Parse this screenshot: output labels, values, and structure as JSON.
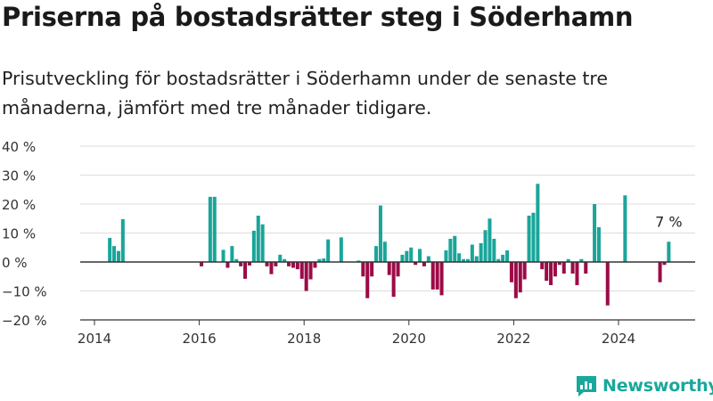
{
  "title": "Priserna på bostadsrätter steg i Söderhamn",
  "subtitle": "Prisutveckling för bostadsrätter i Söderhamn under de senaste tre månaderna, jämfört med tre månader tidigare.",
  "brand": {
    "name": "Newsworthy",
    "color": "#19a89c"
  },
  "colors": {
    "positive": "#1aa59a",
    "negative": "#9c0b47",
    "grid": "#dddddd",
    "axis": "#333333",
    "text": "#333333"
  },
  "chart_data": {
    "type": "bar",
    "x_unit": "month",
    "ylim": [
      -20,
      40
    ],
    "yticks": [
      -20,
      -10,
      0,
      10,
      20,
      30,
      40
    ],
    "ytick_labels": [
      "−20 %",
      "−10 %",
      "0 %",
      "10 %",
      "20 %",
      "30 %",
      "40 %"
    ],
    "xticks": [
      2014,
      2016,
      2018,
      2020,
      2022,
      2024
    ],
    "xtick_labels": [
      "2014",
      "2016",
      "2018",
      "2020",
      "2022",
      "2024"
    ],
    "grid": true,
    "annotation": {
      "text": "7 %",
      "x": "2024-12",
      "y": 7
    },
    "series": [
      {
        "points": [
          [
            "2014-04",
            8.3
          ],
          [
            "2014-05",
            5.5
          ],
          [
            "2014-06",
            3.8
          ],
          [
            "2014-07",
            14.8
          ],
          [
            "2016-01",
            -1.5
          ],
          [
            "2016-03",
            22.5
          ],
          [
            "2016-04",
            22.5
          ],
          [
            "2016-06",
            4.2
          ],
          [
            "2016-07",
            -2.0
          ],
          [
            "2016-08",
            5.5
          ],
          [
            "2016-09",
            1.0
          ],
          [
            "2016-10",
            -1.5
          ],
          [
            "2016-11",
            -5.8
          ],
          [
            "2016-12",
            -1.2
          ],
          [
            "2017-01",
            10.8
          ],
          [
            "2017-02",
            16.0
          ],
          [
            "2017-03",
            13.0
          ],
          [
            "2017-04",
            -1.5
          ],
          [
            "2017-05",
            -4.2
          ],
          [
            "2017-06",
            -1.5
          ],
          [
            "2017-07",
            2.5
          ],
          [
            "2017-08",
            1.0
          ],
          [
            "2017-09",
            -1.5
          ],
          [
            "2017-10",
            -2.0
          ],
          [
            "2017-11",
            -2.5
          ],
          [
            "2017-12",
            -5.8
          ],
          [
            "2018-01",
            -10.0
          ],
          [
            "2018-02",
            -6.0
          ],
          [
            "2018-03",
            -2.0
          ],
          [
            "2018-04",
            1.0
          ],
          [
            "2018-05",
            1.2
          ],
          [
            "2018-06",
            7.8
          ],
          [
            "2018-09",
            8.5
          ],
          [
            "2019-01",
            0.5
          ],
          [
            "2019-02",
            -5.0
          ],
          [
            "2019-03",
            -12.5
          ],
          [
            "2019-04",
            -5.0
          ],
          [
            "2019-05",
            5.5
          ],
          [
            "2019-06",
            19.5
          ],
          [
            "2019-07",
            7.0
          ],
          [
            "2019-08",
            -4.5
          ],
          [
            "2019-09",
            -12.0
          ],
          [
            "2019-10",
            -5.0
          ],
          [
            "2019-11",
            2.5
          ],
          [
            "2019-12",
            3.8
          ],
          [
            "2020-01",
            5.0
          ],
          [
            "2020-02",
            -1.0
          ],
          [
            "2020-03",
            4.5
          ],
          [
            "2020-04",
            -1.5
          ],
          [
            "2020-05",
            2.0
          ],
          [
            "2020-06",
            -9.5
          ],
          [
            "2020-07",
            -9.5
          ],
          [
            "2020-08",
            -11.5
          ],
          [
            "2020-09",
            4.0
          ],
          [
            "2020-10",
            8.0
          ],
          [
            "2020-11",
            9.0
          ],
          [
            "2020-12",
            3.0
          ],
          [
            "2021-01",
            1.0
          ],
          [
            "2021-02",
            1.0
          ],
          [
            "2021-03",
            6.0
          ],
          [
            "2021-04",
            2.0
          ],
          [
            "2021-05",
            6.5
          ],
          [
            "2021-06",
            11.0
          ],
          [
            "2021-07",
            15.0
          ],
          [
            "2021-08",
            8.0
          ],
          [
            "2021-09",
            1.0
          ],
          [
            "2021-10",
            2.5
          ],
          [
            "2021-11",
            4.0
          ],
          [
            "2021-12",
            -7.0
          ],
          [
            "2022-01",
            -12.5
          ],
          [
            "2022-02",
            -10.5
          ],
          [
            "2022-03",
            -6.0
          ],
          [
            "2022-04",
            16.0
          ],
          [
            "2022-05",
            17.0
          ],
          [
            "2022-06",
            27.0
          ],
          [
            "2022-07",
            -2.5
          ],
          [
            "2022-08",
            -6.5
          ],
          [
            "2022-09",
            -8.0
          ],
          [
            "2022-10",
            -5.0
          ],
          [
            "2022-11",
            -1.0
          ],
          [
            "2022-12",
            -4.0
          ],
          [
            "2023-01",
            1.0
          ],
          [
            "2023-02",
            -4.0
          ],
          [
            "2023-03",
            -8.0
          ],
          [
            "2023-04",
            1.0
          ],
          [
            "2023-05",
            -4.0
          ],
          [
            "2023-07",
            20.0
          ],
          [
            "2023-08",
            12.0
          ],
          [
            "2023-10",
            -15.0
          ],
          [
            "2024-02",
            23.0
          ],
          [
            "2024-10",
            -7.0
          ],
          [
            "2024-11",
            -1.0
          ],
          [
            "2024-12",
            7.0
          ]
        ]
      }
    ]
  }
}
